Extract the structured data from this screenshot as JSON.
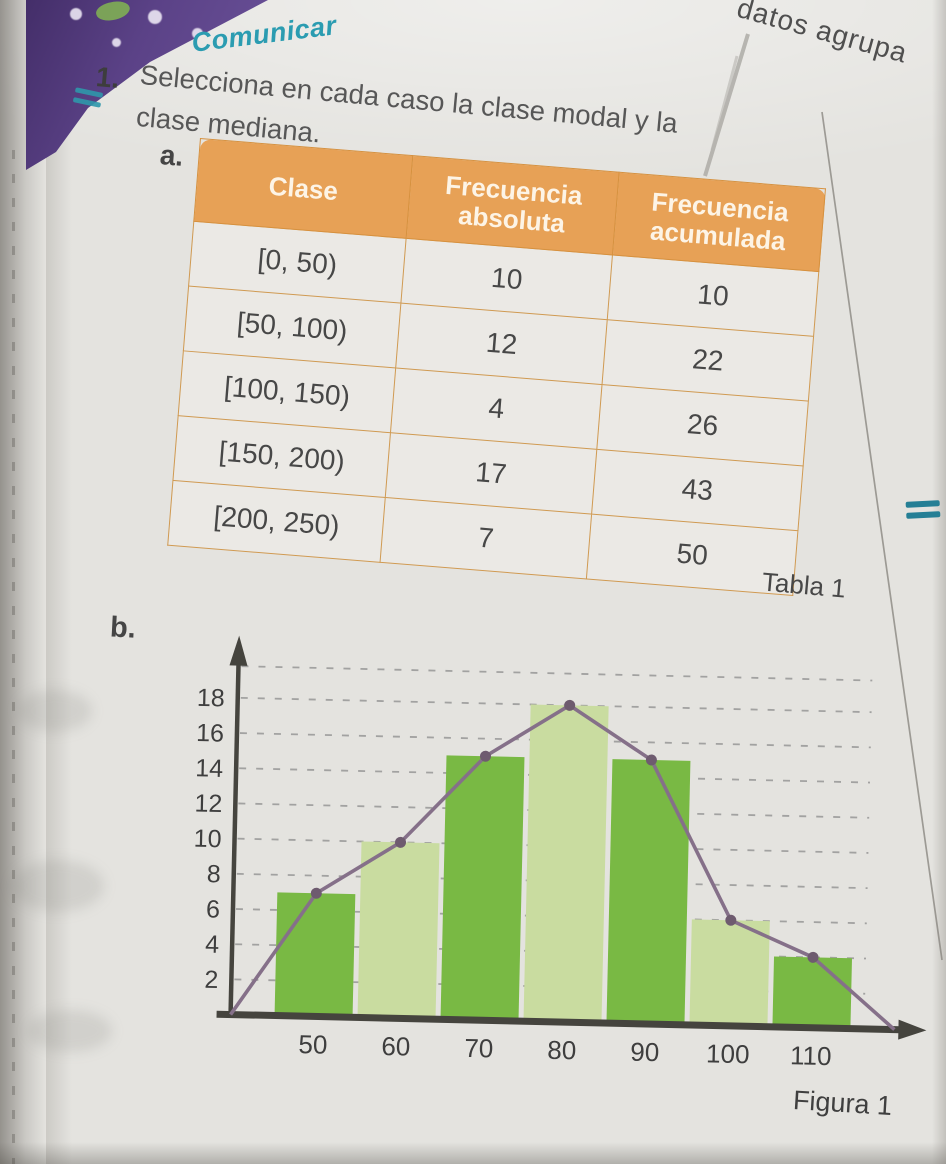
{
  "page": {
    "section_tab": "Comunicar",
    "running_head": "datos agrupa",
    "table_caption": "Tabla 1",
    "figure_caption": "Figura 1"
  },
  "exercise": {
    "number": "1.",
    "prompt_line1": "Selecciona en cada caso la clase modal y la",
    "prompt_line2": "clase mediana.",
    "item_a_label": "a.",
    "item_b_label": "b."
  },
  "table": {
    "columns": [
      "Clase",
      "Frecuencia absoluta",
      "Frecuencia acumulada"
    ],
    "rows": [
      {
        "clase": "[0, 50)",
        "absoluta": "10",
        "acumulada": "10"
      },
      {
        "clase": "[50, 100)",
        "absoluta": "12",
        "acumulada": "22"
      },
      {
        "clase": "[100, 150)",
        "absoluta": "4",
        "acumulada": "26"
      },
      {
        "clase": "[150, 200)",
        "absoluta": "17",
        "acumulada": "43"
      },
      {
        "clase": "[200, 250)",
        "absoluta": "7",
        "acumulada": "50"
      }
    ]
  },
  "chart_data": {
    "type": "bar",
    "subtype": "histogram with frequency polygon",
    "categories": [
      50,
      60,
      70,
      80,
      90,
      100,
      110
    ],
    "values": [
      7,
      10,
      15,
      18,
      15,
      6,
      4
    ],
    "polygon": {
      "x": [
        40,
        50,
        60,
        70,
        80,
        90,
        100,
        110,
        120
      ],
      "y": [
        0,
        7,
        10,
        15,
        18,
        15,
        6,
        4,
        0
      ]
    },
    "yticks": [
      2,
      4,
      6,
      8,
      10,
      12,
      14,
      16,
      18
    ],
    "ylim": [
      0,
      20
    ],
    "xlim": [
      40,
      120
    ],
    "top_gridline_value": 19.8,
    "grid": "dashed-horizontal",
    "legend": "none",
    "title": "",
    "xlabel": "",
    "ylabel": "",
    "bar_colors": [
      "#79b944",
      "#c9dca0"
    ],
    "line_color": "#857089",
    "marker_color": "#6e5b6f",
    "axis_color": "#45443e",
    "tick_label_color": "#3e3e3e"
  },
  "colors": {
    "accent_teal": "#2b9cb1",
    "table_header_bg": "#e7a156",
    "table_border": "#d6913f",
    "page_bg": "#e4e3df",
    "cover_purple": "#5b4287"
  }
}
